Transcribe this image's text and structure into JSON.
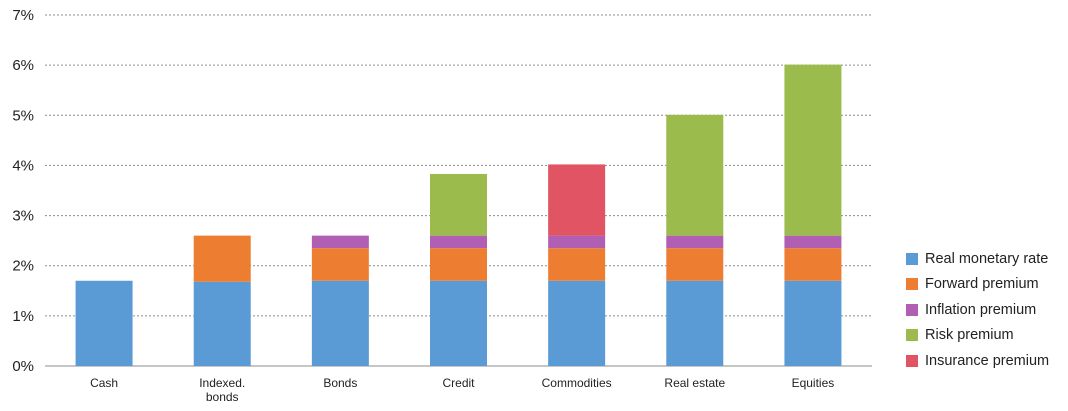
{
  "chart_data": {
    "type": "bar",
    "stacked": true,
    "title": "",
    "xlabel": "",
    "ylabel": "",
    "ylim": [
      0,
      7
    ],
    "y_ticks": [
      "0%",
      "1%",
      "2%",
      "3%",
      "4%",
      "5%",
      "6%",
      "7%"
    ],
    "grid": true,
    "legend_position": "right",
    "categories": [
      "Cash",
      "Indexed.\nbonds",
      "Bonds",
      "Credit",
      "Commodities",
      "Real estate",
      "Equities"
    ],
    "series": [
      {
        "name": "Real monetary rate",
        "color": "#5b9bd5",
        "values": [
          1.7,
          1.68,
          1.7,
          1.7,
          1.7,
          1.7,
          1.7
        ]
      },
      {
        "name": "Forward premium",
        "color": "#ed7d31",
        "values": [
          0,
          0.92,
          0.65,
          0.65,
          0.65,
          0.65,
          0.65
        ]
      },
      {
        "name": "Inflation premium",
        "color": "#b05fb3",
        "values": [
          0,
          0,
          0.25,
          0.25,
          0.25,
          0.25,
          0.25
        ]
      },
      {
        "name": "Risk premium",
        "color": "#9bbb4d",
        "values": [
          0,
          0,
          0,
          1.23,
          0,
          2.41,
          3.41
        ]
      },
      {
        "name": "Insurance premium",
        "color": "#e05463",
        "values": [
          0,
          0,
          0,
          0,
          1.42,
          0,
          0
        ]
      }
    ]
  }
}
